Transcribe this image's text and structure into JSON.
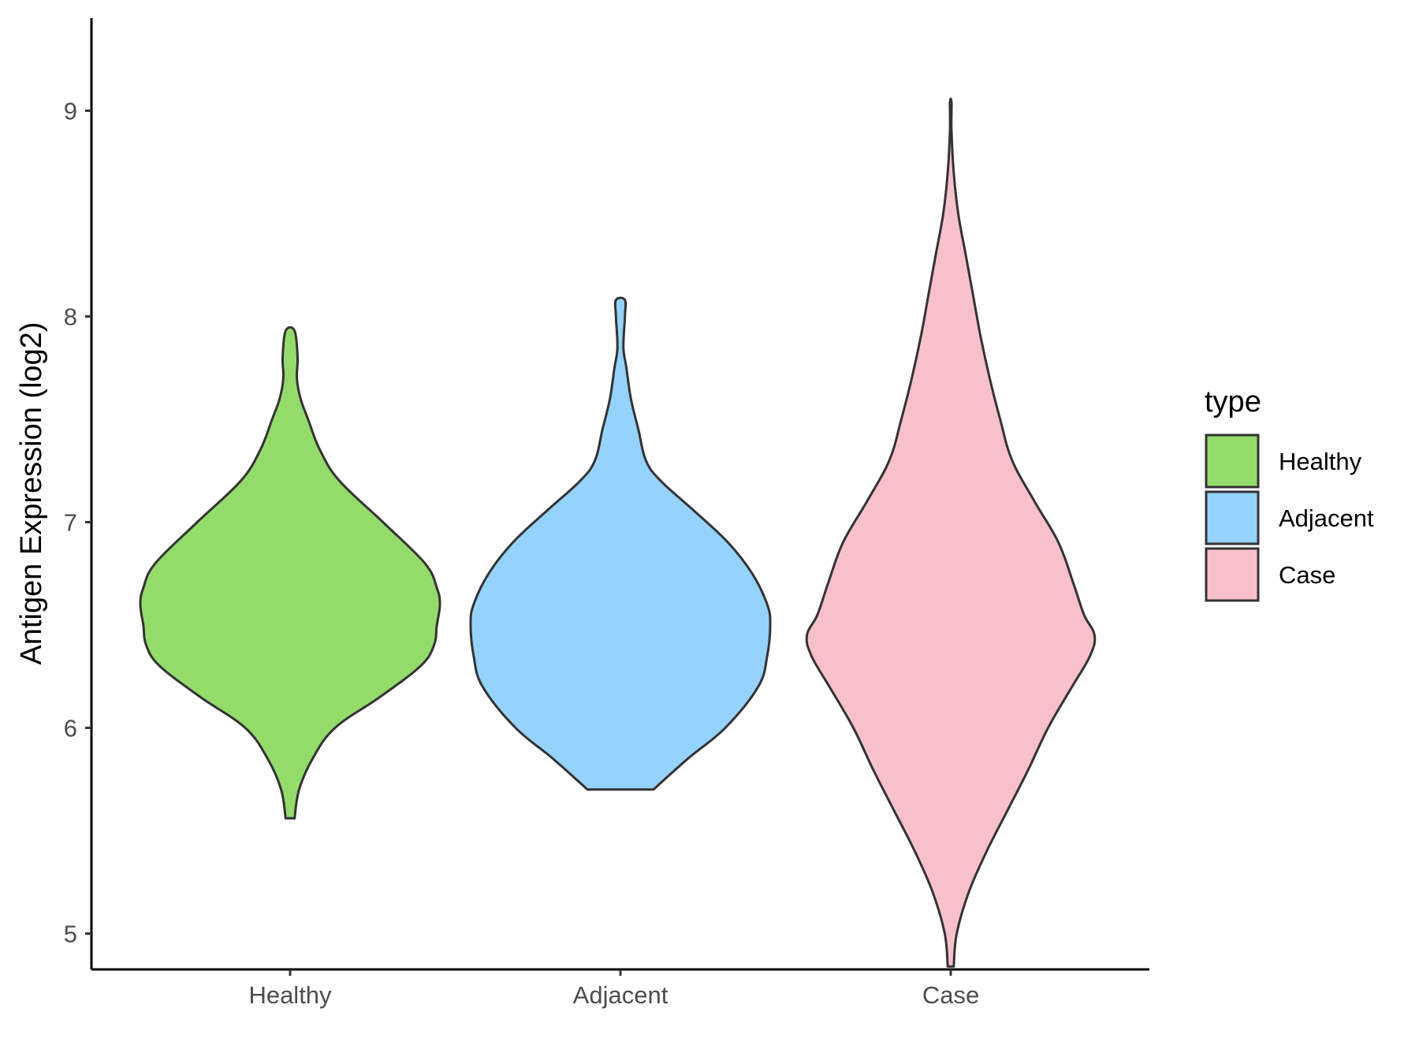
{
  "chart_data": {
    "type": "violin",
    "title": "",
    "xlabel": "",
    "ylabel": "Antigen Expression (log2)",
    "ylim": [
      4.6,
      9.25
    ],
    "yticks": [
      5,
      6,
      7,
      8,
      9
    ],
    "categories": [
      "Healthy",
      "Adjacent",
      "Case"
    ],
    "grid": false,
    "legend": {
      "title": "type",
      "position": "right",
      "entries": [
        "Healthy",
        "Adjacent",
        "Case"
      ]
    },
    "colors": {
      "Healthy": "#93dc6a",
      "Adjacent": "#94d3fd",
      "Case": "#f8c0cb",
      "outline": "#333333"
    },
    "series": [
      {
        "name": "Healthy",
        "min": 5.56,
        "max": 7.93,
        "profile": [
          [
            5.56,
            0.03
          ],
          [
            5.7,
            0.06
          ],
          [
            5.85,
            0.15
          ],
          [
            6.0,
            0.3
          ],
          [
            6.15,
            0.6
          ],
          [
            6.3,
            0.87
          ],
          [
            6.4,
            0.96
          ],
          [
            6.5,
            0.98
          ],
          [
            6.6,
            1.0
          ],
          [
            6.68,
            0.98
          ],
          [
            6.8,
            0.9
          ],
          [
            7.0,
            0.62
          ],
          [
            7.2,
            0.33
          ],
          [
            7.35,
            0.2
          ],
          [
            7.5,
            0.12
          ],
          [
            7.6,
            0.07
          ],
          [
            7.7,
            0.045
          ],
          [
            7.8,
            0.05
          ],
          [
            7.93,
            0.03
          ]
        ]
      },
      {
        "name": "Adjacent",
        "min": 5.7,
        "max": 8.08,
        "profile": [
          [
            5.7,
            0.22
          ],
          [
            5.85,
            0.45
          ],
          [
            6.0,
            0.7
          ],
          [
            6.2,
            0.92
          ],
          [
            6.35,
            0.98
          ],
          [
            6.5,
            1.0
          ],
          [
            6.6,
            0.98
          ],
          [
            6.75,
            0.88
          ],
          [
            6.9,
            0.72
          ],
          [
            7.05,
            0.5
          ],
          [
            7.2,
            0.27
          ],
          [
            7.3,
            0.17
          ],
          [
            7.45,
            0.12
          ],
          [
            7.6,
            0.07
          ],
          [
            7.75,
            0.04
          ],
          [
            7.85,
            0.02
          ],
          [
            8.0,
            0.03
          ],
          [
            8.08,
            0.03
          ]
        ]
      },
      {
        "name": "Case",
        "min": 4.84,
        "max": 9.04,
        "profile": [
          [
            4.84,
            0.02
          ],
          [
            5.0,
            0.04
          ],
          [
            5.2,
            0.12
          ],
          [
            5.4,
            0.24
          ],
          [
            5.6,
            0.38
          ],
          [
            5.8,
            0.52
          ],
          [
            6.0,
            0.65
          ],
          [
            6.2,
            0.81
          ],
          [
            6.35,
            0.93
          ],
          [
            6.45,
            0.96
          ],
          [
            6.55,
            0.89
          ],
          [
            6.7,
            0.82
          ],
          [
            6.9,
            0.72
          ],
          [
            7.1,
            0.56
          ],
          [
            7.3,
            0.41
          ],
          [
            7.5,
            0.33
          ],
          [
            7.7,
            0.26
          ],
          [
            7.9,
            0.2
          ],
          [
            8.1,
            0.15
          ],
          [
            8.3,
            0.1
          ],
          [
            8.5,
            0.05
          ],
          [
            8.7,
            0.02
          ],
          [
            8.9,
            0.005
          ],
          [
            9.04,
            0.005
          ]
        ]
      }
    ]
  }
}
